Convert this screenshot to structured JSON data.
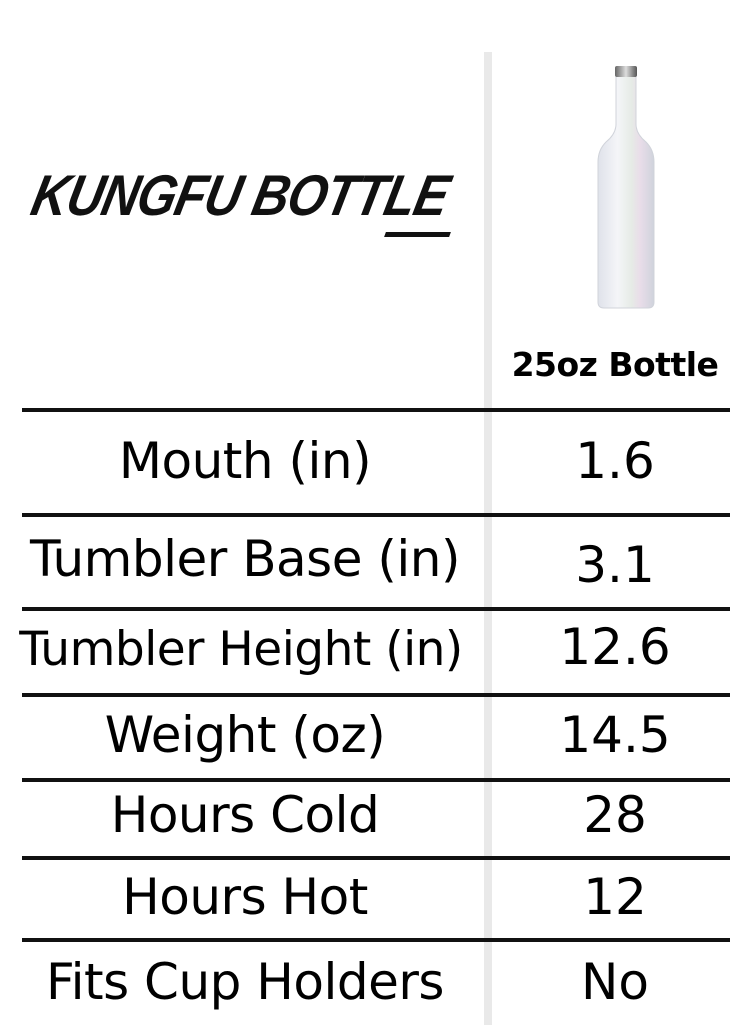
{
  "brand": {
    "logo_text": "KUNGFU BOTTLE"
  },
  "product": {
    "name": "25oz Bottle",
    "image": "white-iridescent-wine-bottle"
  },
  "specs": [
    {
      "label": "Mouth (in)",
      "value": "1.6"
    },
    {
      "label": "Tumbler Base (in)",
      "value": "3.1"
    },
    {
      "label": "Tumbler Height (in)",
      "value": "12.6"
    },
    {
      "label": "Weight (oz)",
      "value": "14.5"
    },
    {
      "label": "Hours Cold",
      "value": "28"
    },
    {
      "label": "Hours Hot",
      "value": "12"
    },
    {
      "label": "Fits Cup Holders",
      "value": "No"
    }
  ]
}
